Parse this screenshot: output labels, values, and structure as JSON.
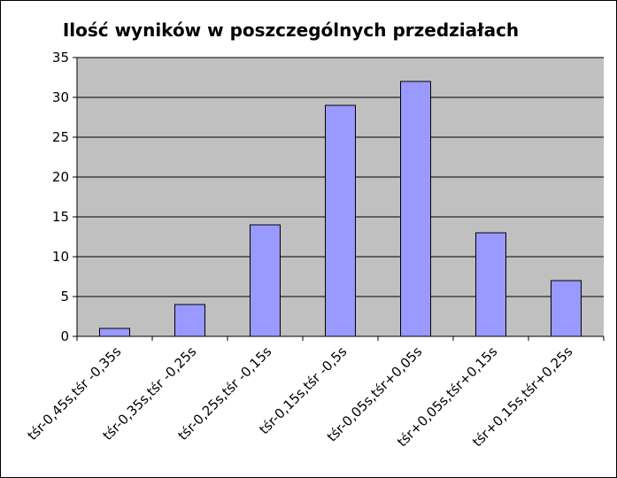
{
  "chart_data": {
    "type": "bar",
    "title": "Ilość wyników w poszczególnych przedziałach",
    "xlabel": "",
    "ylabel": "",
    "categories": [
      "tśr-0,45s,tśr -0,35s",
      "tśr-0,35s,tśr -0,25s",
      "tśr-0,25s,tśr -0,15s",
      "tśr-0,15s,tśr -0,5s",
      "tśr-0,05s,tśr+0,05s",
      "tśr+0,05s,tśr+0,15s",
      "tśr+0,15s,tśr+0,25s"
    ],
    "values": [
      1,
      4,
      14,
      29,
      32,
      13,
      7
    ],
    "ylim": [
      0,
      35
    ],
    "yticks": [
      "0",
      "5",
      "10",
      "15",
      "20",
      "25",
      "30",
      "35"
    ],
    "grid": true,
    "legend": "none",
    "colors": {
      "plot_background": "#c0c0c0",
      "bar_fill": "#9999ff",
      "bar_stroke": "#000000",
      "gridline": "#000000"
    }
  }
}
